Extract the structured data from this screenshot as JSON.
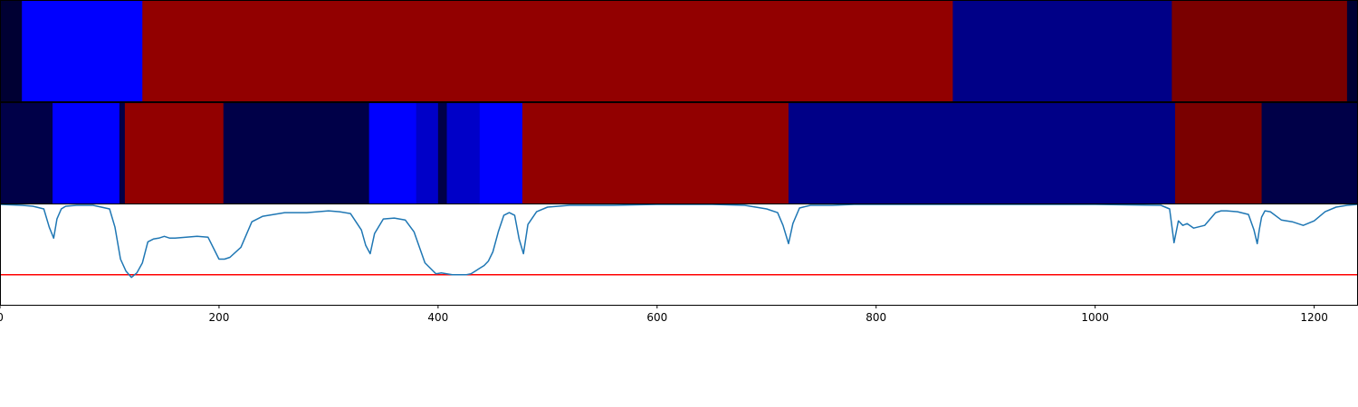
{
  "chart_data": [
    {
      "type": "heatmap",
      "xlim": [
        0,
        1240
      ],
      "segments": [
        {
          "start": 0,
          "end": 20,
          "color": "#000033"
        },
        {
          "start": 20,
          "end": 130,
          "color": "#0000ff"
        },
        {
          "start": 130,
          "end": 870,
          "color": "#920000"
        },
        {
          "start": 870,
          "end": 1070,
          "color": "#000087"
        },
        {
          "start": 1070,
          "end": 1230,
          "color": "#7a0000"
        },
        {
          "start": 1230,
          "end": 1240,
          "color": "#000033"
        }
      ]
    },
    {
      "type": "heatmap",
      "xlim": [
        0,
        1240
      ],
      "segments": [
        {
          "start": 0,
          "end": 48,
          "color": "#000048"
        },
        {
          "start": 48,
          "end": 109,
          "color": "#0000ff"
        },
        {
          "start": 109,
          "end": 114,
          "color": "#000048"
        },
        {
          "start": 114,
          "end": 204,
          "color": "#920000"
        },
        {
          "start": 204,
          "end": 337,
          "color": "#000048"
        },
        {
          "start": 337,
          "end": 380,
          "color": "#0000ff"
        },
        {
          "start": 380,
          "end": 400,
          "color": "#0000c8"
        },
        {
          "start": 400,
          "end": 408,
          "color": "#000048"
        },
        {
          "start": 408,
          "end": 438,
          "color": "#0000c8"
        },
        {
          "start": 438,
          "end": 477,
          "color": "#0000ff"
        },
        {
          "start": 477,
          "end": 720,
          "color": "#920000"
        },
        {
          "start": 720,
          "end": 1073,
          "color": "#000087"
        },
        {
          "start": 1073,
          "end": 1152,
          "color": "#7a0000"
        },
        {
          "start": 1152,
          "end": 1240,
          "color": "#000048"
        }
      ]
    },
    {
      "type": "line",
      "xlim": [
        0,
        1240
      ],
      "ylim": [
        -0.1,
        1.0
      ],
      "grid": false,
      "threshold": {
        "value": 0.23,
        "color": "#ff0000"
      },
      "series": [
        {
          "color": "#1f77b4",
          "x": [
            0,
            20,
            30,
            40,
            45,
            49,
            52,
            56,
            60,
            70,
            85,
            100,
            105,
            110,
            115,
            120,
            125,
            130,
            135,
            140,
            145,
            150,
            155,
            160,
            170,
            180,
            190,
            200,
            205,
            210,
            220,
            230,
            240,
            250,
            260,
            280,
            300,
            310,
            320,
            330,
            334,
            338,
            342,
            350,
            360,
            370,
            378,
            383,
            388,
            393,
            398,
            403,
            408,
            413,
            418,
            422,
            426,
            430,
            434,
            438,
            442,
            446,
            450,
            455,
            460,
            465,
            470,
            474,
            478,
            482,
            490,
            500,
            520,
            540,
            560,
            600,
            650,
            680,
            690,
            700,
            710,
            715,
            720,
            724,
            730,
            740,
            760,
            780,
            800,
            840,
            900,
            1000,
            1060,
            1068,
            1072,
            1076,
            1080,
            1084,
            1090,
            1100,
            1110,
            1115,
            1120,
            1130,
            1140,
            1145,
            1148,
            1150,
            1152,
            1155,
            1160,
            1170,
            1180,
            1190,
            1200,
            1210,
            1220,
            1230,
            1240
          ],
          "y": [
            1.0,
            0.99,
            0.98,
            0.95,
            0.75,
            0.63,
            0.84,
            0.95,
            0.98,
            0.99,
            0.99,
            0.95,
            0.75,
            0.4,
            0.27,
            0.2,
            0.25,
            0.36,
            0.59,
            0.62,
            0.63,
            0.65,
            0.63,
            0.63,
            0.64,
            0.65,
            0.64,
            0.4,
            0.4,
            0.42,
            0.53,
            0.81,
            0.87,
            0.89,
            0.91,
            0.91,
            0.93,
            0.92,
            0.9,
            0.72,
            0.55,
            0.46,
            0.68,
            0.84,
            0.85,
            0.83,
            0.7,
            0.53,
            0.36,
            0.3,
            0.24,
            0.25,
            0.24,
            0.23,
            0.23,
            0.23,
            0.23,
            0.24,
            0.27,
            0.3,
            0.33,
            0.38,
            0.48,
            0.7,
            0.88,
            0.91,
            0.88,
            0.62,
            0.46,
            0.78,
            0.92,
            0.97,
            0.99,
            0.99,
            0.99,
            1.0,
            1.0,
            0.99,
            0.97,
            0.95,
            0.91,
            0.77,
            0.57,
            0.79,
            0.96,
            0.99,
            0.99,
            1.0,
            1.0,
            1.0,
            1.0,
            1.0,
            0.99,
            0.95,
            0.58,
            0.82,
            0.77,
            0.79,
            0.74,
            0.77,
            0.91,
            0.93,
            0.93,
            0.92,
            0.89,
            0.72,
            0.57,
            0.73,
            0.86,
            0.93,
            0.92,
            0.83,
            0.81,
            0.77,
            0.82,
            0.92,
            0.97,
            0.99,
            1.0
          ]
        }
      ],
      "x_ticks": [
        0,
        200,
        400,
        600,
        800,
        1000,
        1200
      ],
      "x_tick_labels": [
        "0",
        "200",
        "400",
        "600",
        "800",
        "1000",
        "1200"
      ]
    }
  ]
}
